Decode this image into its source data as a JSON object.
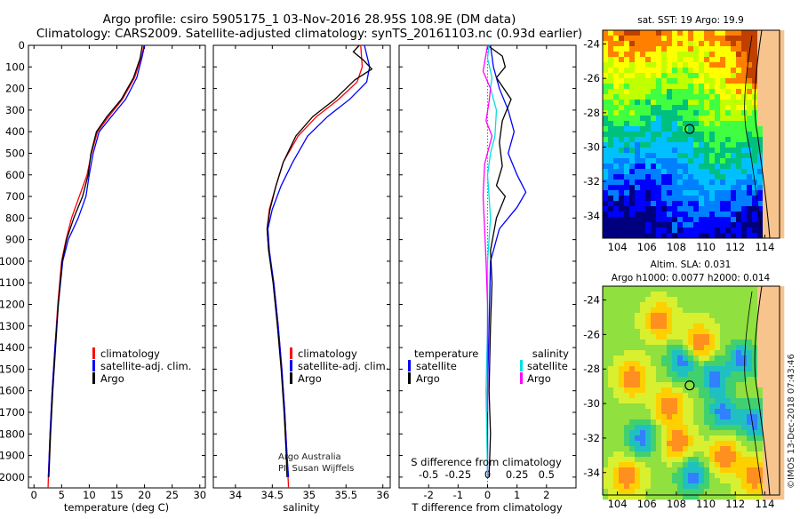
{
  "header": {
    "title_line1": "Argo profile: csiro 5905175_1 03-Nov-2016 28.95S 108.9E (DM data)",
    "title_line2": "Climatology: CARS2009. Satellite-adjusted climatology: synTS_20161103.nc (0.93d earlier)"
  },
  "credits": {
    "argo_australia": "Argo Australia",
    "pi": "PI: Susan Wijffels",
    "imos": "©IMOS 13-Dec-2018 07:43:46"
  },
  "colors": {
    "climatology": "#ff0000",
    "satellite": "#0000ff",
    "argo": "#000000",
    "salinity_satellite": "#00e0e0",
    "salinity_argo": "#ff00ff"
  },
  "chart_data": [
    {
      "type": "line",
      "panel": "temperature",
      "xlabel": "temperature (deg C)",
      "xlim": [
        -1,
        31
      ],
      "xticks": [
        0,
        5,
        10,
        15,
        20,
        25,
        30
      ],
      "ylim": [
        2050,
        0
      ],
      "yticks": [
        0,
        100,
        200,
        300,
        400,
        500,
        600,
        700,
        800,
        900,
        1000,
        1100,
        1200,
        1300,
        1400,
        1500,
        1600,
        1700,
        1800,
        1900,
        2000
      ],
      "legend": [
        "climatology",
        "satellite-adj. clim.",
        "Argo"
      ],
      "series": [
        {
          "name": "climatology",
          "color": "#ff0000",
          "points": [
            [
              19.9,
              0
            ],
            [
              19.5,
              50
            ],
            [
              18.2,
              150
            ],
            [
              16.0,
              250
            ],
            [
              13.5,
              330
            ],
            [
              11.5,
              400
            ],
            [
              10.4,
              500
            ],
            [
              9.6,
              600
            ],
            [
              8.2,
              700
            ],
            [
              6.8,
              800
            ],
            [
              5.8,
              900
            ],
            [
              5.0,
              1000
            ],
            [
              4.3,
              1200
            ],
            [
              3.8,
              1400
            ],
            [
              3.3,
              1600
            ],
            [
              2.9,
              1800
            ],
            [
              2.6,
              2000
            ],
            [
              2.55,
              2050
            ]
          ]
        },
        {
          "name": "satellite-adj. clim.",
          "color": "#0000ff",
          "points": [
            [
              20.0,
              0
            ],
            [
              19.6,
              50
            ],
            [
              18.6,
              150
            ],
            [
              16.6,
              250
            ],
            [
              14.0,
              330
            ],
            [
              11.8,
              400
            ],
            [
              10.7,
              500
            ],
            [
              10.0,
              600
            ],
            [
              9.4,
              700
            ],
            [
              8.0,
              800
            ],
            [
              6.2,
              900
            ],
            [
              5.2,
              1000
            ],
            [
              4.4,
              1200
            ],
            [
              3.8,
              1400
            ],
            [
              3.3,
              1600
            ],
            [
              2.9,
              1800
            ],
            [
              2.6,
              2000
            ]
          ]
        },
        {
          "name": "Argo",
          "color": "#000000",
          "points": [
            [
              19.6,
              0
            ],
            [
              19.2,
              60
            ],
            [
              18.0,
              150
            ],
            [
              15.8,
              250
            ],
            [
              13.2,
              330
            ],
            [
              11.3,
              400
            ],
            [
              10.3,
              500
            ],
            [
              9.8,
              600
            ],
            [
              8.8,
              700
            ],
            [
              7.2,
              800
            ],
            [
              5.9,
              900
            ],
            [
              5.1,
              1000
            ],
            [
              4.4,
              1200
            ],
            [
              3.9,
              1400
            ],
            [
              3.4,
              1600
            ],
            [
              3.0,
              1800
            ],
            [
              2.7,
              2000
            ]
          ]
        }
      ]
    },
    {
      "type": "line",
      "panel": "salinity",
      "xlabel": "salinity",
      "xlim": [
        33.7,
        36.1
      ],
      "xticks": [
        34,
        34.5,
        35,
        35.5,
        36
      ],
      "xticklabels": [
        "34",
        "34.5",
        "35",
        "35.5",
        "36"
      ],
      "ylim": [
        2050,
        0
      ],
      "legend": [
        "climatology",
        "satellite-adj. clim.",
        "Argo"
      ],
      "series": [
        {
          "name": "climatology",
          "color": "#ff0000",
          "points": [
            [
              35.7,
              0
            ],
            [
              35.72,
              100
            ],
            [
              35.65,
              170
            ],
            [
              35.4,
              250
            ],
            [
              35.1,
              330
            ],
            [
              34.85,
              420
            ],
            [
              34.65,
              540
            ],
            [
              34.55,
              650
            ],
            [
              34.46,
              760
            ],
            [
              34.43,
              850
            ],
            [
              34.45,
              950
            ],
            [
              34.52,
              1100
            ],
            [
              34.58,
              1300
            ],
            [
              34.63,
              1500
            ],
            [
              34.67,
              1700
            ],
            [
              34.7,
              1900
            ],
            [
              34.72,
              2050
            ]
          ]
        },
        {
          "name": "satellite-adj. clim.",
          "color": "#0000ff",
          "points": [
            [
              35.75,
              0
            ],
            [
              35.82,
              100
            ],
            [
              35.78,
              170
            ],
            [
              35.55,
              250
            ],
            [
              35.25,
              330
            ],
            [
              34.98,
              420
            ],
            [
              34.78,
              540
            ],
            [
              34.62,
              650
            ],
            [
              34.5,
              760
            ],
            [
              34.44,
              850
            ],
            [
              34.46,
              950
            ],
            [
              34.52,
              1100
            ],
            [
              34.58,
              1300
            ],
            [
              34.63,
              1500
            ],
            [
              34.67,
              1700
            ],
            [
              34.7,
              1900
            ],
            [
              34.72,
              2000
            ]
          ]
        },
        {
          "name": "Argo",
          "color": "#000000",
          "points": [
            [
              35.68,
              0
            ],
            [
              35.6,
              30
            ],
            [
              35.74,
              70
            ],
            [
              35.85,
              110
            ],
            [
              35.62,
              160
            ],
            [
              35.35,
              250
            ],
            [
              35.05,
              330
            ],
            [
              34.82,
              420
            ],
            [
              34.65,
              540
            ],
            [
              34.55,
              650
            ],
            [
              34.47,
              760
            ],
            [
              34.43,
              850
            ],
            [
              34.45,
              950
            ],
            [
              34.51,
              1100
            ],
            [
              34.57,
              1300
            ],
            [
              34.62,
              1500
            ],
            [
              34.66,
              1700
            ],
            [
              34.69,
              1900
            ],
            [
              34.7,
              2000
            ]
          ]
        }
      ]
    },
    {
      "type": "line",
      "panel": "difference",
      "xlabel": "T difference from climatology",
      "xlabel_top": "S difference from climatology",
      "xlim": [
        -3,
        3
      ],
      "xticks": [
        -2,
        -1,
        0,
        1,
        2
      ],
      "sticks": [
        -0.5,
        -0.25,
        0,
        0.25,
        0.5
      ],
      "sticklabels": [
        "-0.5",
        "-0.25",
        "0",
        "0.25",
        "0.5"
      ],
      "ylim": [
        2050,
        0
      ],
      "legend_temperature_title": "temperature",
      "legend_salinity_title": "salinity",
      "legend_temperature": [
        "satellite",
        "Argo"
      ],
      "legend_salinity": [
        "satellite",
        "Argo"
      ],
      "series": [
        {
          "name": "satellite",
          "color": "#0000ff",
          "points": [
            [
              0.1,
              0
            ],
            [
              0.2,
              100
            ],
            [
              0.4,
              200
            ],
            [
              0.7,
              300
            ],
            [
              0.9,
              400
            ],
            [
              0.7,
              500
            ],
            [
              1.0,
              600
            ],
            [
              1.3,
              680
            ],
            [
              1.0,
              750
            ],
            [
              0.4,
              850
            ],
            [
              0.1,
              1000
            ],
            [
              0.05,
              1300
            ],
            [
              0.0,
              1600
            ],
            [
              0.0,
              2000
            ]
          ]
        },
        {
          "name": "Argo",
          "color": "#000000",
          "points": [
            [
              0.0,
              0
            ],
            [
              0.5,
              50
            ],
            [
              0.6,
              100
            ],
            [
              0.3,
              150
            ],
            [
              0.8,
              250
            ],
            [
              0.5,
              350
            ],
            [
              0.4,
              450
            ],
            [
              0.5,
              560
            ],
            [
              0.3,
              650
            ],
            [
              0.6,
              700
            ],
            [
              0.3,
              800
            ],
            [
              0.1,
              950
            ],
            [
              0.15,
              1100
            ],
            [
              0.1,
              1300
            ],
            [
              0.05,
              1600
            ],
            [
              0.1,
              1800
            ],
            [
              0.05,
              2000
            ]
          ]
        },
        {
          "name": "satellite",
          "color": "#00e0e0",
          "points": [
            [
              0.05,
              0
            ],
            [
              0.0,
              60
            ],
            [
              0.15,
              150
            ],
            [
              0.1,
              200
            ],
            [
              0.3,
              300
            ],
            [
              0.25,
              420
            ],
            [
              0.1,
              500
            ],
            [
              0.0,
              600
            ],
            [
              0.1,
              800
            ],
            [
              0.0,
              1000
            ],
            [
              0.0,
              1300
            ],
            [
              -0.05,
              1600
            ],
            [
              0.0,
              2000
            ]
          ]
        },
        {
          "name": "Argo",
          "color": "#ff00ff",
          "points": [
            [
              0.0,
              0
            ],
            [
              -0.15,
              120
            ],
            [
              0.1,
              200
            ],
            [
              0.05,
              260
            ],
            [
              -0.05,
              350
            ],
            [
              0.15,
              420
            ],
            [
              -0.1,
              550
            ],
            [
              -0.15,
              700
            ],
            [
              -0.1,
              850
            ],
            [
              -0.05,
              1000
            ],
            [
              0.0,
              1200
            ],
            [
              0.0,
              1500
            ],
            [
              0.0,
              1700
            ]
          ]
        }
      ]
    },
    {
      "type": "heatmap",
      "panel": "sst_map",
      "title": "sat. SST: 19 Argo: 19.9",
      "xticks": [
        104,
        106,
        108,
        110,
        112,
        114
      ],
      "yticks": [
        -24,
        -26,
        -28,
        -30,
        -32,
        -34
      ],
      "xlim": [
        103,
        115
      ],
      "ylim": [
        -35.3,
        -23.2
      ],
      "marker": [
        108.9,
        -28.95
      ],
      "palette": [
        "#00007f",
        "#0000ff",
        "#0080ff",
        "#00c0ff",
        "#00c080",
        "#40ff40",
        "#c0ff00",
        "#ffff00",
        "#ff8000",
        "#c04000"
      ]
    },
    {
      "type": "heatmap",
      "panel": "sla_map",
      "title_line1": "Altim. SLA: 0.031",
      "title_line2": "Argo h1000: 0.0077 h2000: 0.014",
      "xticks": [
        104,
        106,
        108,
        110,
        112,
        114
      ],
      "yticks": [
        -24,
        -26,
        -28,
        -30,
        -32,
        -34
      ],
      "xlim": [
        103,
        115
      ],
      "ylim": [
        -35.3,
        -23.2
      ],
      "marker": [
        108.9,
        -28.95
      ]
    }
  ]
}
